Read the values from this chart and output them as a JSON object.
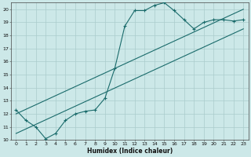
{
  "xlabel": "Humidex (Indice chaleur)",
  "background_color": "#cce8e8",
  "grid_color": "#aacccc",
  "line_color": "#1a6b6b",
  "xlim": [
    -0.5,
    23.5
  ],
  "ylim": [
    10,
    20.5
  ],
  "x_ticks": [
    0,
    1,
    2,
    3,
    4,
    5,
    6,
    7,
    8,
    9,
    10,
    11,
    12,
    13,
    14,
    15,
    16,
    17,
    18,
    19,
    20,
    21,
    22,
    23
  ],
  "y_ticks": [
    10,
    11,
    12,
    13,
    14,
    15,
    16,
    17,
    18,
    19,
    20
  ],
  "curve_x": [
    0,
    1,
    2,
    3,
    4,
    5,
    6,
    7,
    8,
    9,
    10,
    11,
    12,
    13,
    14,
    15,
    16,
    17,
    18,
    19,
    20,
    21,
    22,
    23
  ],
  "curve_y": [
    12.3,
    11.5,
    11.0,
    10.1,
    10.5,
    11.5,
    12.0,
    12.2,
    12.3,
    13.2,
    15.5,
    18.7,
    19.9,
    19.9,
    20.3,
    20.5,
    19.9,
    19.2,
    18.5,
    19.0,
    19.2,
    19.2,
    19.1,
    19.2
  ],
  "line1_x": [
    0,
    23
  ],
  "line1_y": [
    10.5,
    18.5
  ],
  "line2_x": [
    0,
    23
  ],
  "line2_y": [
    12.0,
    20.0
  ],
  "tick_fontsize": 4.5,
  "xlabel_fontsize": 5.5,
  "xlabel_fontweight": "bold"
}
